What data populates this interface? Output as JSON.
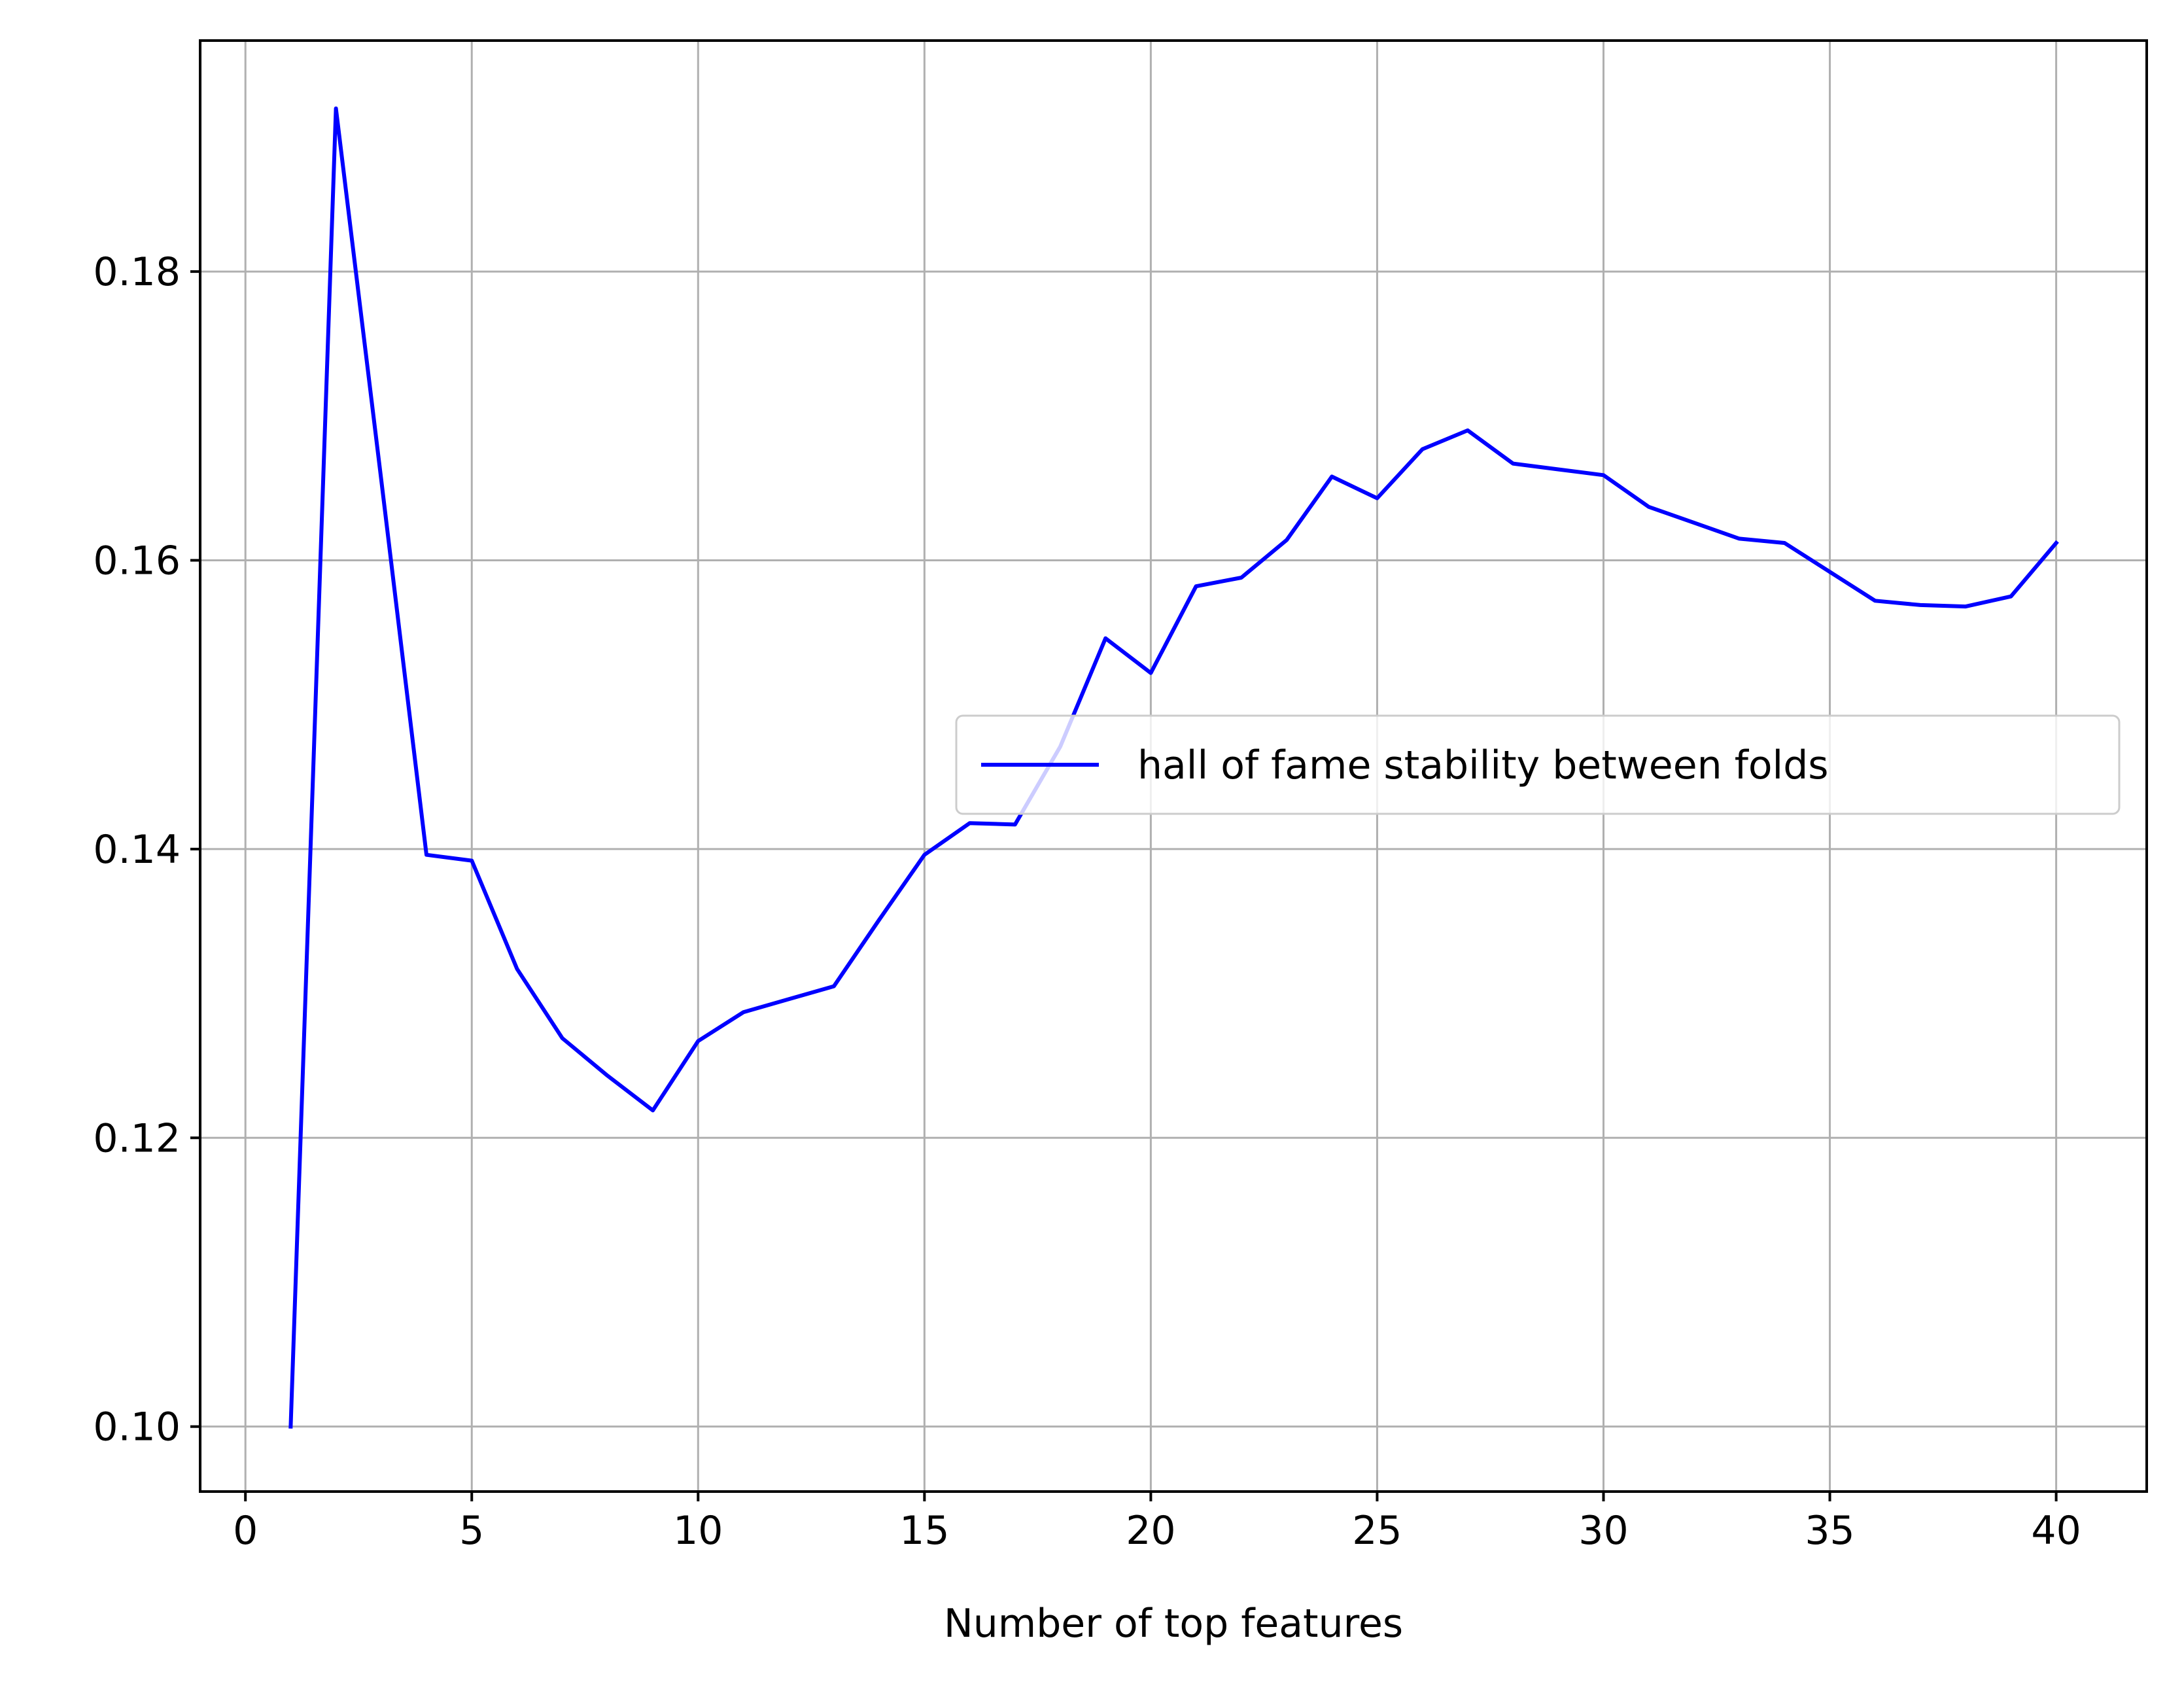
{
  "chart_data": {
    "type": "line",
    "title": "",
    "xlabel": "Number of top features",
    "ylabel": "",
    "xlim": [
      -1,
      42
    ],
    "ylim": [
      0.0955,
      0.196
    ],
    "xticks": [
      0,
      5,
      10,
      15,
      20,
      25,
      30,
      35,
      40
    ],
    "xtick_labels": [
      "0",
      "5",
      "10",
      "15",
      "20",
      "25",
      "30",
      "35",
      "40"
    ],
    "yticks": [
      0.1,
      0.12,
      0.14,
      0.16,
      0.18
    ],
    "ytick_labels": [
      "0.10",
      "0.12",
      "0.14",
      "0.16",
      "0.18"
    ],
    "grid": true,
    "legend_position": "center-right",
    "series": [
      {
        "name": "hall of fame stability between folds",
        "color": "#0000ff",
        "x": [
          1,
          2,
          3,
          4,
          5,
          6,
          7,
          8,
          9,
          10,
          11,
          12,
          13,
          14,
          15,
          16,
          17,
          18,
          19,
          20,
          21,
          22,
          23,
          24,
          25,
          26,
          27,
          28,
          29,
          30,
          31,
          32,
          33,
          34,
          35,
          36,
          37,
          38,
          39,
          40
        ],
        "y": [
          0.1,
          0.1913,
          0.1656,
          0.1396,
          0.1392,
          0.1317,
          0.1269,
          0.1243,
          0.1219,
          0.1267,
          0.1287,
          0.1296,
          0.1305,
          0.1351,
          0.1396,
          0.1418,
          0.1417,
          0.1471,
          0.1546,
          0.1522,
          0.1582,
          0.1588,
          0.1614,
          0.1658,
          0.1643,
          0.1677,
          0.169,
          0.1667,
          0.1663,
          0.1659,
          0.1637,
          0.1626,
          0.1615,
          0.1612,
          0.1592,
          0.1572,
          0.1569,
          0.1568,
          0.1575,
          0.1612
        ]
      }
    ]
  }
}
